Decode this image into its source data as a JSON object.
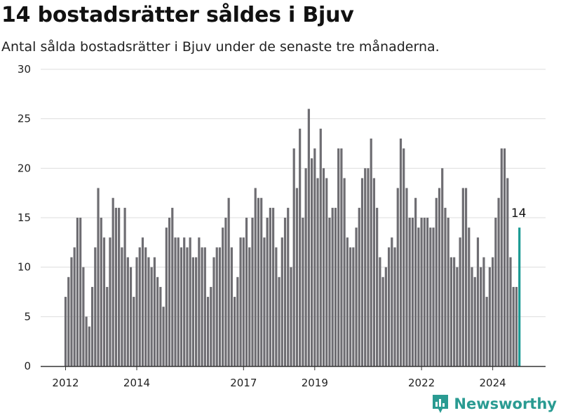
{
  "header": {
    "title": "14 bostadsrätter såldes i Bjuv",
    "subtitle": "Antal sålda bostadsrätter i Bjuv under de senaste tre månaderna."
  },
  "brand": {
    "name": "Newsworthy",
    "color": "#2a9b92"
  },
  "colors": {
    "bar": "#6e6d72",
    "highlight": "#1a9a93",
    "grid": "#dddddd",
    "axis": "#333333"
  },
  "chart_data": {
    "type": "bar",
    "title": "14 bostadsrätter såldes i Bjuv",
    "subtitle": "Antal sålda bostadsrätter i Bjuv under de senaste tre månaderna.",
    "xlabel": "",
    "ylabel": "",
    "ylim": [
      0,
      30
    ],
    "yticks": [
      0,
      5,
      10,
      15,
      20,
      25,
      30
    ],
    "xticks": [
      {
        "label": "2012",
        "index": 0
      },
      {
        "label": "2014",
        "index": 24
      },
      {
        "label": "2017",
        "index": 60
      },
      {
        "label": "2019",
        "index": 84
      },
      {
        "label": "2022",
        "index": 120
      },
      {
        "label": "2024",
        "index": 144
      }
    ],
    "grid": true,
    "values": [
      7,
      9,
      11,
      12,
      15,
      15,
      10,
      5,
      4,
      8,
      12,
      18,
      15,
      13,
      8,
      13,
      17,
      16,
      16,
      12,
      16,
      11,
      10,
      7,
      11,
      12,
      13,
      12,
      11,
      10,
      11,
      9,
      8,
      6,
      14,
      15,
      16,
      13,
      13,
      12,
      13,
      12,
      13,
      11,
      11,
      13,
      12,
      12,
      7,
      8,
      11,
      12,
      12,
      14,
      15,
      17,
      12,
      7,
      9,
      13,
      13,
      15,
      12,
      15,
      18,
      17,
      17,
      13,
      15,
      16,
      16,
      12,
      9,
      13,
      15,
      16,
      10,
      22,
      18,
      24,
      15,
      20,
      26,
      21,
      22,
      19,
      24,
      20,
      19,
      15,
      16,
      16,
      22,
      22,
      19,
      13,
      12,
      12,
      14,
      16,
      19,
      20,
      20,
      23,
      19,
      16,
      11,
      9,
      10,
      12,
      13,
      12,
      18,
      23,
      22,
      18,
      15,
      15,
      17,
      14,
      15,
      15,
      15,
      14,
      14,
      17,
      18,
      20,
      16,
      15,
      11,
      11,
      10,
      13,
      18,
      18,
      14,
      10,
      9,
      13,
      10,
      11,
      7,
      10,
      11,
      15,
      17,
      22,
      22,
      19,
      11,
      8,
      8,
      14
    ],
    "highlight_index": 153,
    "highlight_label": "14"
  }
}
